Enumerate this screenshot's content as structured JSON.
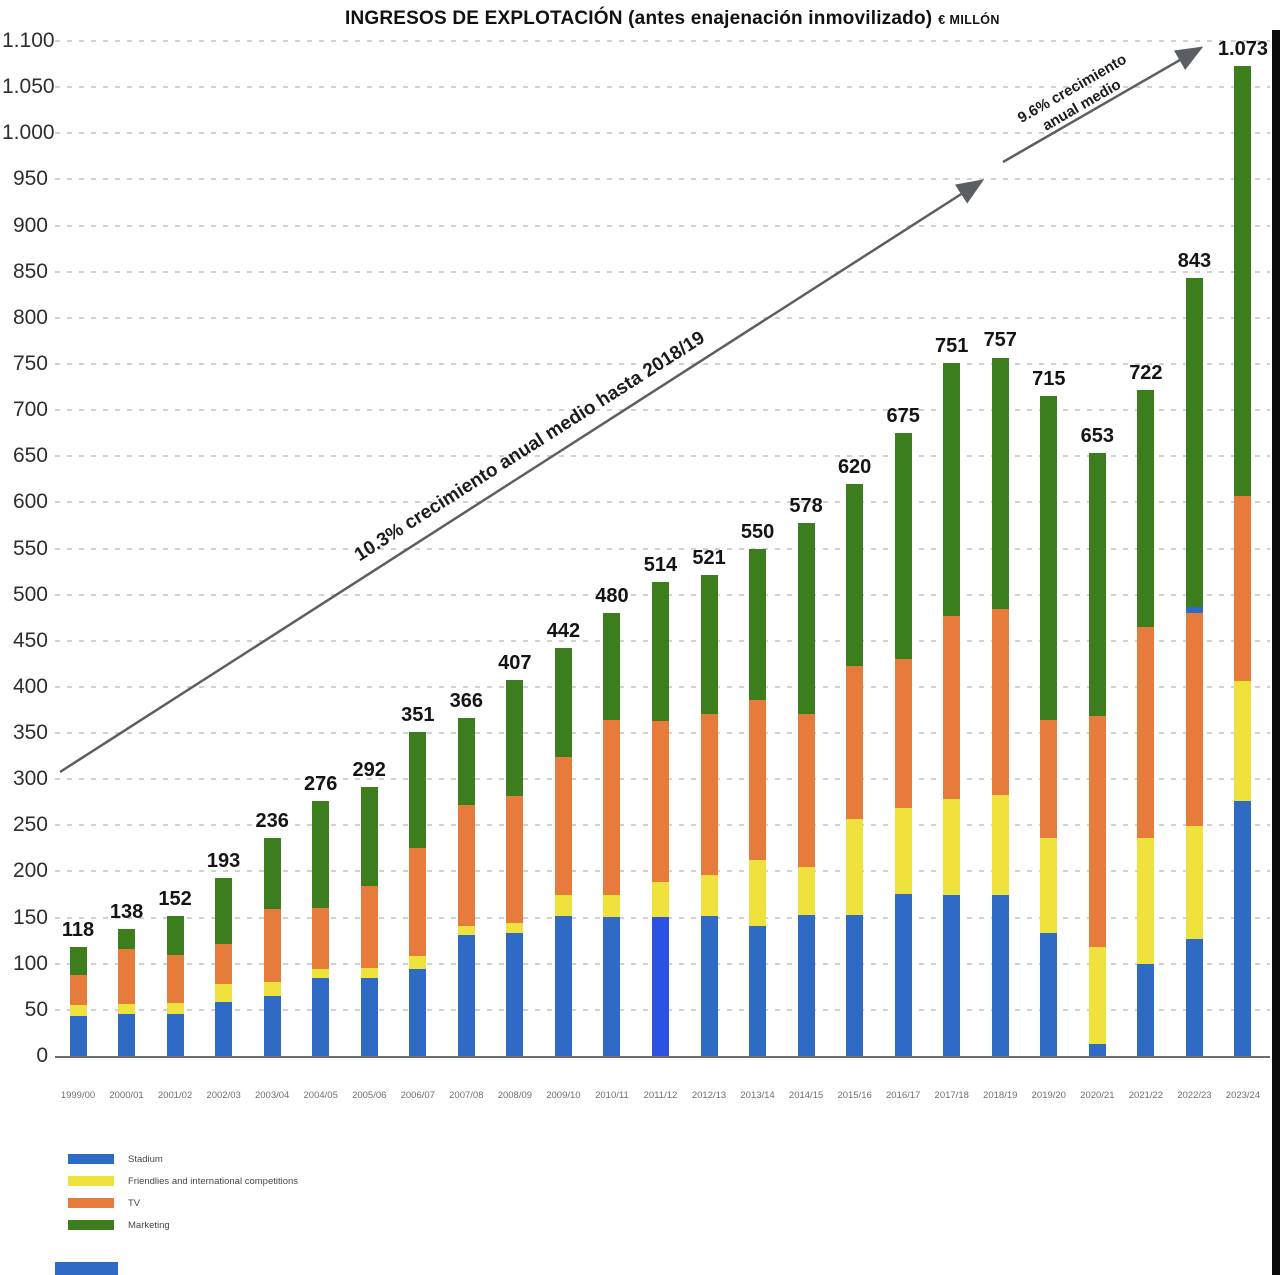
{
  "title": {
    "main": "INGRESOS DE EXPLOTACIÓN (antes enajenación inmovilizado)",
    "unit": "€ MILLÓN"
  },
  "annotations": {
    "long_trend": "10.3% crecimiento anual medio hasta 2018/19",
    "short_trend_line1": "9.6% crecimiento",
    "short_trend_line2": "anual medio"
  },
  "colors": {
    "stadium": "#2f6ac4",
    "stadium_highlight_2011_12": "#2b52e3",
    "friendlies": "#efe23c",
    "tv": "#e77b3c",
    "marketing": "#3c7d1e",
    "arrow": "#5b5f63",
    "axis_line": "#6e6e6e",
    "gridline": "#c9c9c9"
  },
  "legend": {
    "items": [
      {
        "label": "Stadium",
        "color": "#2f6ac4"
      },
      {
        "label": "Friendlies and international competitions",
        "color": "#efe23c"
      },
      {
        "label": "TV",
        "color": "#e77b3c"
      },
      {
        "label": "Marketing",
        "color": "#3c7d1e"
      }
    ]
  },
  "chart_data": {
    "type": "bar",
    "stacked": true,
    "title": "INGRESOS DE EXPLOTACIÓN (antes enajenación inmovilizado) € MILLÓN",
    "unit": "€ million",
    "ylim": [
      0,
      1100
    ],
    "ytick_step": 50,
    "ytick_labels": [
      "0",
      "50",
      "100",
      "150",
      "200",
      "250",
      "300",
      "350",
      "400",
      "450",
      "500",
      "550",
      "600",
      "650",
      "700",
      "750",
      "800",
      "850",
      "900",
      "950",
      "1.000",
      "1.050",
      "1.100"
    ],
    "grid": "horizontal dotted",
    "legend_position": "bottom-left",
    "series_names": [
      "Stadium",
      "Friendlies and international competitions",
      "TV",
      "Marketing"
    ],
    "categories": [
      "1999/00",
      "2000/01",
      "2001/02",
      "2002/03",
      "2003/04",
      "2004/05",
      "2005/06",
      "2006/07",
      "2007/08",
      "2008/09",
      "2009/10",
      "2010/11",
      "2011/12",
      "2012/13",
      "2013/14",
      "2014/15",
      "2015/16",
      "2016/17",
      "2017/18",
      "2018/19",
      "2019/20",
      "2020/21",
      "2021/22",
      "2022/23",
      "2023/24"
    ],
    "totals_labels": [
      "118",
      "138",
      "152",
      "193",
      "236",
      "276",
      "292",
      "351",
      "366",
      "407",
      "442",
      "480",
      "514",
      "521",
      "550",
      "578",
      "620",
      "675",
      "751",
      "757",
      "715",
      "653",
      "722",
      "843",
      "1.073"
    ],
    "bars": [
      {
        "season": "1999/00",
        "total": 118,
        "stadium": 43,
        "friendlies": 12,
        "tv": 33,
        "marketing": 30
      },
      {
        "season": "2000/01",
        "total": 138,
        "stadium": 45,
        "friendlies": 11,
        "tv": 60,
        "marketing": 22
      },
      {
        "season": "2001/02",
        "total": 152,
        "stadium": 46,
        "friendlies": 11,
        "tv": 52,
        "marketing": 43
      },
      {
        "season": "2002/03",
        "total": 193,
        "stadium": 59,
        "friendlies": 19,
        "tv": 43,
        "marketing": 72
      },
      {
        "season": "2003/04",
        "total": 236,
        "stadium": 65,
        "friendlies": 15,
        "tv": 79,
        "marketing": 77
      },
      {
        "season": "2004/05",
        "total": 276,
        "stadium": 84,
        "friendlies": 10,
        "tv": 66,
        "marketing": 116
      },
      {
        "season": "2005/06",
        "total": 292,
        "stadium": 85,
        "friendlies": 10,
        "tv": 89,
        "marketing": 108
      },
      {
        "season": "2006/07",
        "total": 351,
        "stadium": 94,
        "friendlies": 14,
        "tv": 117,
        "marketing": 126
      },
      {
        "season": "2007/08",
        "total": 366,
        "stadium": 131,
        "friendlies": 10,
        "tv": 131,
        "marketing": 94
      },
      {
        "season": "2008/09",
        "total": 407,
        "stadium": 133,
        "friendlies": 11,
        "tv": 138,
        "marketing": 125
      },
      {
        "season": "2009/10",
        "total": 442,
        "stadium": 152,
        "friendlies": 22,
        "tv": 150,
        "marketing": 118
      },
      {
        "season": "2010/11",
        "total": 480,
        "stadium": 151,
        "friendlies": 24,
        "tv": 189,
        "marketing": 116
      },
      {
        "season": "2011/12",
        "total": 514,
        "stadium": 151,
        "friendlies": 38,
        "tv": 174,
        "marketing": 151,
        "stadium_color": "#2b52e3"
      },
      {
        "season": "2012/13",
        "total": 521,
        "stadium": 152,
        "friendlies": 44,
        "tv": 175,
        "marketing": 150
      },
      {
        "season": "2013/14",
        "total": 550,
        "stadium": 141,
        "friendlies": 71,
        "tv": 174,
        "marketing": 164
      },
      {
        "season": "2014/15",
        "total": 578,
        "stadium": 153,
        "friendlies": 52,
        "tv": 166,
        "marketing": 207
      },
      {
        "season": "2015/16",
        "total": 620,
        "stadium": 153,
        "friendlies": 104,
        "tv": 166,
        "marketing": 197
      },
      {
        "season": "2016/17",
        "total": 675,
        "stadium": 176,
        "friendlies": 93,
        "tv": 161,
        "marketing": 245
      },
      {
        "season": "2017/18",
        "total": 751,
        "stadium": 174,
        "friendlies": 104,
        "tv": 199,
        "marketing": 274
      },
      {
        "season": "2018/19",
        "total": 757,
        "stadium": 174,
        "friendlies": 109,
        "tv": 201,
        "marketing": 273
      },
      {
        "season": "2019/20",
        "total": 715,
        "stadium": 133,
        "friendlies": 103,
        "tv": 128,
        "marketing": 351
      },
      {
        "season": "2020/21",
        "total": 653,
        "stadium": 13,
        "friendlies": 105,
        "tv": 250,
        "marketing": 285
      },
      {
        "season": "2021/22",
        "total": 722,
        "stadium": 100,
        "friendlies": 136,
        "tv": 229,
        "marketing": 257
      },
      {
        "season": "2022/23",
        "total": 843,
        "stadium": 127,
        "friendlies": 122,
        "tv": 231,
        "stadium_sliver": 7,
        "marketing": 356
      },
      {
        "season": "2023/24",
        "total": 1073,
        "stadium": 276,
        "friendlies": 130,
        "tv": 201,
        "marketing": 466
      }
    ]
  }
}
